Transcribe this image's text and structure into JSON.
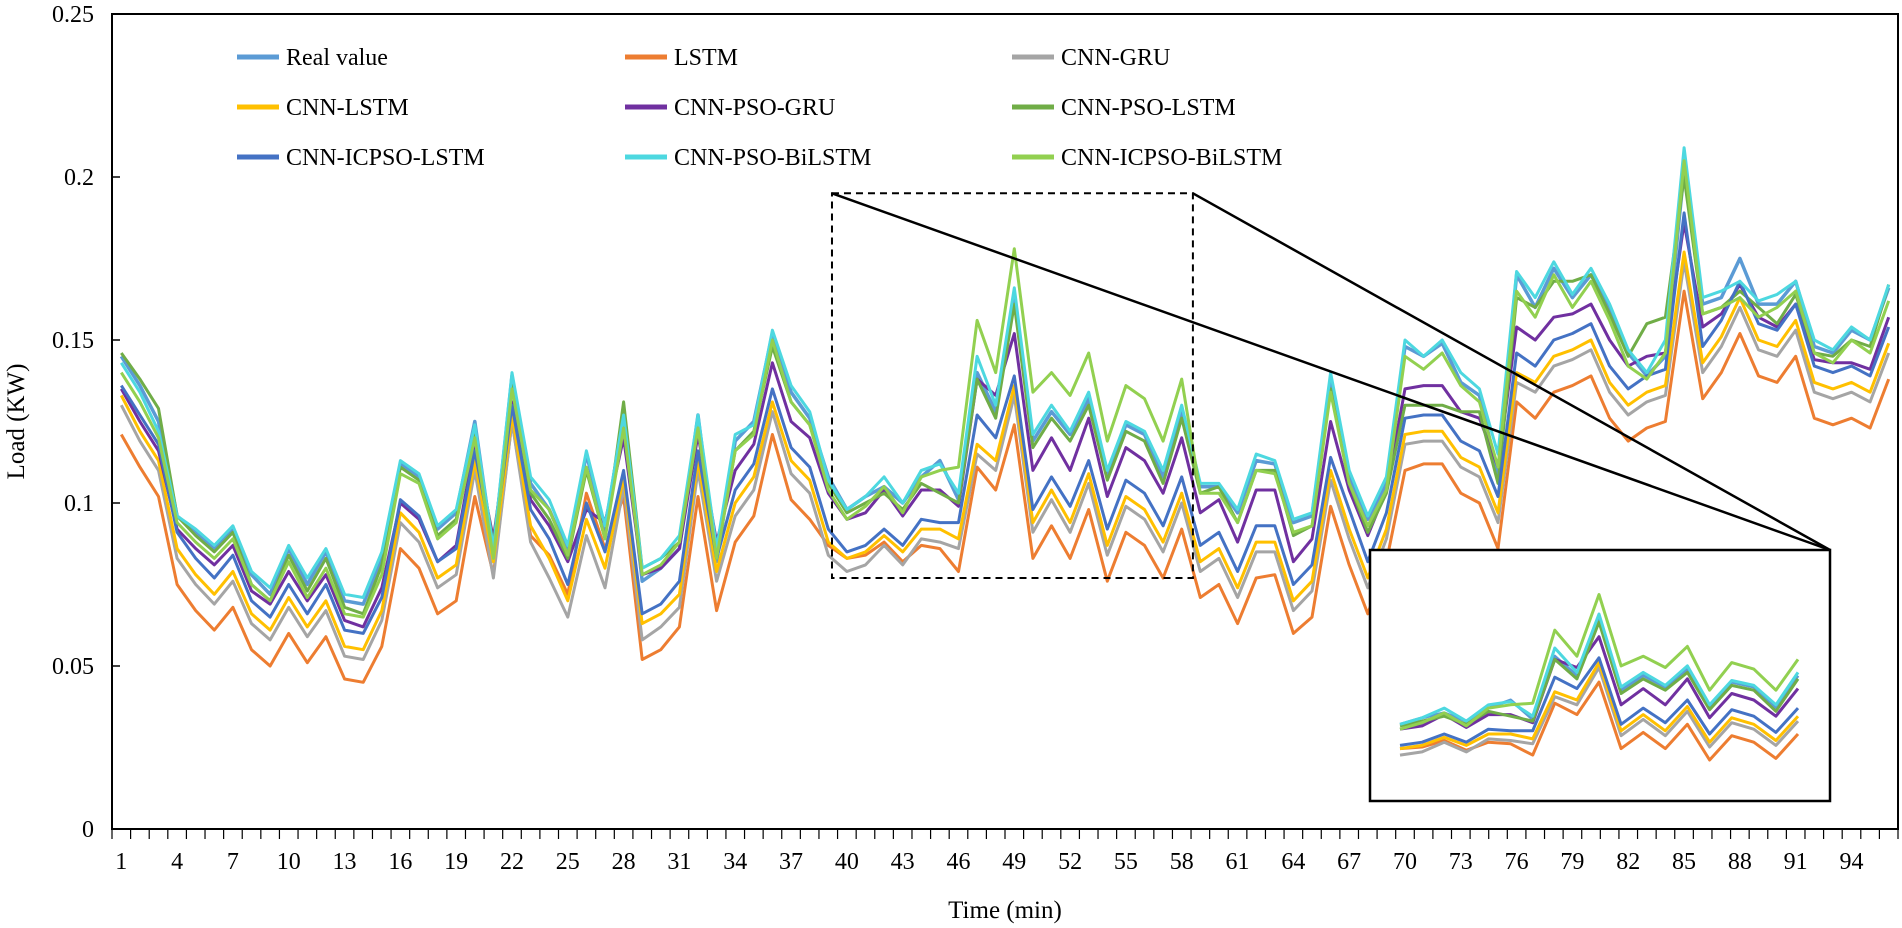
{
  "chart_data": {
    "type": "line",
    "title": "",
    "xlabel": "Time (min)",
    "ylabel": "Load (KW)",
    "ylim": [
      0,
      0.25
    ],
    "xlim": [
      1,
      96
    ],
    "grid": false,
    "legend_position": "top-left",
    "x_tick_labels": [
      "1",
      "4",
      "7",
      "10",
      "13",
      "16",
      "19",
      "22",
      "25",
      "28",
      "31",
      "34",
      "37",
      "40",
      "43",
      "46",
      "49",
      "52",
      "55",
      "58",
      "61",
      "64",
      "67",
      "70",
      "73",
      "76",
      "79",
      "82",
      "85",
      "88",
      "91",
      "94"
    ],
    "y_tick_labels": [
      "0",
      "0.05",
      "0.1",
      "0.15",
      "0.2",
      "0.25"
    ],
    "inset": {
      "x_range": [
        40,
        58
      ],
      "y_range": [
        0.077,
        0.195
      ],
      "note": "zoomed view of Time 40–58"
    },
    "series": [
      {
        "name": "Real value",
        "color": "#5B9BD5",
        "width": 3.5,
        "values": [
          0.145,
          0.136,
          0.125,
          0.096,
          0.091,
          0.086,
          0.092,
          0.078,
          0.072,
          0.086,
          0.075,
          0.085,
          0.07,
          0.069,
          0.083,
          0.112,
          0.108,
          0.092,
          0.097,
          0.125,
          0.085,
          0.139,
          0.106,
          0.098,
          0.085,
          0.115,
          0.092,
          0.127,
          0.076,
          0.08,
          0.086,
          0.127,
          0.082,
          0.119,
          0.125,
          0.152,
          0.134,
          0.126,
          0.108,
          0.098,
          0.102,
          0.105,
          0.1,
          0.108,
          0.113,
          0.101,
          0.14,
          0.128,
          0.164,
          0.119,
          0.128,
          0.121,
          0.132,
          0.109,
          0.124,
          0.121,
          0.108,
          0.128,
          0.105,
          0.105,
          0.097,
          0.113,
          0.112,
          0.094,
          0.096,
          0.138,
          0.108,
          0.095,
          0.106,
          0.148,
          0.145,
          0.149,
          0.137,
          0.133,
          0.109,
          0.17,
          0.16,
          0.172,
          0.163,
          0.17,
          0.16,
          0.146,
          0.139,
          0.145,
          0.202,
          0.161,
          0.163,
          0.175,
          0.161,
          0.161,
          0.168,
          0.148,
          0.146,
          0.153,
          0.15,
          0.166
        ]
      },
      {
        "name": "LSTM",
        "color": "#ED7D31",
        "width": 3,
        "values": [
          0.121,
          0.111,
          0.102,
          0.075,
          0.067,
          0.061,
          0.068,
          0.055,
          0.05,
          0.06,
          0.051,
          0.059,
          0.046,
          0.045,
          0.056,
          0.086,
          0.08,
          0.066,
          0.07,
          0.102,
          0.078,
          0.125,
          0.09,
          0.084,
          0.072,
          0.103,
          0.086,
          0.102,
          0.052,
          0.055,
          0.062,
          0.102,
          0.067,
          0.088,
          0.096,
          0.121,
          0.101,
          0.095,
          0.087,
          0.083,
          0.084,
          0.088,
          0.082,
          0.087,
          0.086,
          0.079,
          0.111,
          0.104,
          0.124,
          0.083,
          0.093,
          0.083,
          0.098,
          0.076,
          0.091,
          0.087,
          0.077,
          0.092,
          0.071,
          0.075,
          0.063,
          0.077,
          0.078,
          0.06,
          0.065,
          0.099,
          0.081,
          0.066,
          0.082,
          0.11,
          0.112,
          0.112,
          0.103,
          0.1,
          0.086,
          0.131,
          0.126,
          0.134,
          0.136,
          0.139,
          0.126,
          0.119,
          0.123,
          0.125,
          0.165,
          0.132,
          0.14,
          0.152,
          0.139,
          0.137,
          0.145,
          0.126,
          0.124,
          0.126,
          0.123,
          0.138
        ]
      },
      {
        "name": "CNN-GRU",
        "color": "#A5A5A5",
        "width": 3,
        "values": [
          0.13,
          0.119,
          0.11,
          0.083,
          0.075,
          0.069,
          0.076,
          0.063,
          0.058,
          0.068,
          0.059,
          0.067,
          0.053,
          0.052,
          0.064,
          0.094,
          0.088,
          0.074,
          0.078,
          0.11,
          0.077,
          0.125,
          0.088,
          0.077,
          0.065,
          0.09,
          0.074,
          0.105,
          0.058,
          0.062,
          0.068,
          0.11,
          0.076,
          0.096,
          0.104,
          0.128,
          0.109,
          0.103,
          0.084,
          0.079,
          0.081,
          0.087,
          0.081,
          0.089,
          0.088,
          0.086,
          0.115,
          0.11,
          0.133,
          0.091,
          0.101,
          0.091,
          0.106,
          0.084,
          0.099,
          0.095,
          0.085,
          0.1,
          0.079,
          0.083,
          0.071,
          0.085,
          0.085,
          0.067,
          0.073,
          0.107,
          0.089,
          0.074,
          0.089,
          0.118,
          0.119,
          0.119,
          0.111,
          0.108,
          0.094,
          0.137,
          0.134,
          0.142,
          0.144,
          0.147,
          0.134,
          0.127,
          0.131,
          0.133,
          0.174,
          0.14,
          0.148,
          0.16,
          0.147,
          0.145,
          0.153,
          0.134,
          0.132,
          0.134,
          0.131,
          0.146
        ]
      },
      {
        "name": "CNN-LSTM",
        "color": "#FFC000",
        "width": 3,
        "values": [
          0.133,
          0.122,
          0.113,
          0.086,
          0.078,
          0.072,
          0.079,
          0.066,
          0.061,
          0.071,
          0.062,
          0.07,
          0.056,
          0.055,
          0.067,
          0.097,
          0.091,
          0.077,
          0.081,
          0.113,
          0.082,
          0.127,
          0.093,
          0.083,
          0.07,
          0.095,
          0.08,
          0.108,
          0.063,
          0.066,
          0.072,
          0.113,
          0.079,
          0.1,
          0.108,
          0.131,
          0.113,
          0.107,
          0.088,
          0.083,
          0.085,
          0.09,
          0.085,
          0.092,
          0.092,
          0.089,
          0.118,
          0.113,
          0.136,
          0.094,
          0.104,
          0.094,
          0.109,
          0.087,
          0.102,
          0.098,
          0.088,
          0.103,
          0.082,
          0.086,
          0.074,
          0.088,
          0.088,
          0.07,
          0.076,
          0.11,
          0.092,
          0.077,
          0.092,
          0.121,
          0.122,
          0.122,
          0.114,
          0.111,
          0.097,
          0.14,
          0.137,
          0.145,
          0.147,
          0.15,
          0.137,
          0.13,
          0.134,
          0.136,
          0.177,
          0.143,
          0.151,
          0.163,
          0.15,
          0.148,
          0.156,
          0.137,
          0.135,
          0.137,
          0.134,
          0.149
        ]
      },
      {
        "name": "CNN-PSO-GRU",
        "color": "#7030A0",
        "width": 3,
        "values": [
          0.135,
          0.125,
          0.116,
          0.092,
          0.086,
          0.081,
          0.087,
          0.073,
          0.069,
          0.079,
          0.07,
          0.078,
          0.064,
          0.062,
          0.074,
          0.1,
          0.095,
          0.082,
          0.087,
          0.118,
          0.089,
          0.131,
          0.101,
          0.093,
          0.082,
          0.098,
          0.094,
          0.12,
          0.078,
          0.08,
          0.086,
          0.121,
          0.088,
          0.11,
          0.118,
          0.143,
          0.125,
          0.12,
          0.103,
          0.095,
          0.097,
          0.104,
          0.096,
          0.104,
          0.104,
          0.099,
          0.138,
          0.133,
          0.152,
          0.11,
          0.12,
          0.11,
          0.126,
          0.102,
          0.117,
          0.113,
          0.103,
          0.12,
          0.097,
          0.101,
          0.088,
          0.104,
          0.104,
          0.082,
          0.089,
          0.125,
          0.104,
          0.09,
          0.104,
          0.135,
          0.136,
          0.136,
          0.128,
          0.126,
          0.111,
          0.154,
          0.15,
          0.157,
          0.158,
          0.161,
          0.15,
          0.142,
          0.145,
          0.146,
          0.186,
          0.154,
          0.158,
          0.167,
          0.157,
          0.154,
          0.161,
          0.144,
          0.143,
          0.143,
          0.141,
          0.157
        ]
      },
      {
        "name": "CNN-PSO-LSTM",
        "color": "#70AD47",
        "width": 3,
        "values": [
          0.146,
          0.138,
          0.129,
          0.096,
          0.09,
          0.085,
          0.091,
          0.075,
          0.07,
          0.084,
          0.073,
          0.083,
          0.068,
          0.066,
          0.081,
          0.111,
          0.107,
          0.09,
          0.095,
          0.122,
          0.087,
          0.136,
          0.103,
          0.095,
          0.083,
          0.11,
          0.089,
          0.131,
          0.08,
          0.083,
          0.088,
          0.125,
          0.084,
          0.116,
          0.122,
          0.148,
          0.131,
          0.124,
          0.106,
          0.097,
          0.1,
          0.103,
          0.098,
          0.106,
          0.103,
          0.1,
          0.138,
          0.126,
          0.161,
          0.117,
          0.126,
          0.119,
          0.13,
          0.107,
          0.122,
          0.119,
          0.106,
          0.126,
          0.103,
          0.105,
          0.094,
          0.11,
          0.11,
          0.09,
          0.093,
          0.135,
          0.106,
          0.091,
          0.103,
          0.13,
          0.13,
          0.13,
          0.128,
          0.128,
          0.106,
          0.163,
          0.16,
          0.168,
          0.168,
          0.17,
          0.158,
          0.145,
          0.155,
          0.157,
          0.2,
          0.158,
          0.16,
          0.165,
          0.16,
          0.155,
          0.164,
          0.146,
          0.145,
          0.15,
          0.148,
          0.167
        ]
      },
      {
        "name": "CNN-ICPSO-LSTM",
        "color": "#4472C4",
        "width": 3,
        "values": [
          0.136,
          0.127,
          0.118,
          0.091,
          0.083,
          0.077,
          0.084,
          0.07,
          0.065,
          0.075,
          0.066,
          0.075,
          0.061,
          0.06,
          0.071,
          0.101,
          0.096,
          0.082,
          0.086,
          0.116,
          0.086,
          0.13,
          0.098,
          0.089,
          0.075,
          0.1,
          0.085,
          0.11,
          0.066,
          0.069,
          0.076,
          0.116,
          0.083,
          0.104,
          0.112,
          0.135,
          0.117,
          0.111,
          0.092,
          0.085,
          0.087,
          0.092,
          0.087,
          0.095,
          0.094,
          0.094,
          0.127,
          0.12,
          0.139,
          0.098,
          0.108,
          0.099,
          0.113,
          0.092,
          0.107,
          0.103,
          0.093,
          0.108,
          0.087,
          0.091,
          0.079,
          0.093,
          0.093,
          0.075,
          0.081,
          0.114,
          0.098,
          0.082,
          0.097,
          0.126,
          0.127,
          0.127,
          0.119,
          0.116,
          0.102,
          0.146,
          0.142,
          0.15,
          0.152,
          0.155,
          0.142,
          0.135,
          0.139,
          0.141,
          0.189,
          0.148,
          0.156,
          0.168,
          0.155,
          0.153,
          0.161,
          0.142,
          0.14,
          0.142,
          0.139,
          0.154
        ]
      },
      {
        "name": "CNN-PSO-BiLSTM",
        "color": "#4DD8E0",
        "width": 3,
        "values": [
          0.143,
          0.134,
          0.122,
          0.096,
          0.092,
          0.087,
          0.093,
          0.079,
          0.074,
          0.087,
          0.077,
          0.086,
          0.072,
          0.071,
          0.085,
          0.113,
          0.109,
          0.093,
          0.098,
          0.124,
          0.086,
          0.14,
          0.108,
          0.101,
          0.087,
          0.116,
          0.093,
          0.127,
          0.08,
          0.083,
          0.09,
          0.127,
          0.086,
          0.121,
          0.124,
          0.153,
          0.136,
          0.128,
          0.107,
          0.098,
          0.102,
          0.108,
          0.1,
          0.11,
          0.112,
          0.103,
          0.145,
          0.13,
          0.166,
          0.121,
          0.13,
          0.122,
          0.134,
          0.11,
          0.125,
          0.122,
          0.11,
          0.13,
          0.106,
          0.106,
          0.098,
          0.115,
          0.113,
          0.095,
          0.097,
          0.14,
          0.11,
          0.096,
          0.108,
          0.15,
          0.145,
          0.15,
          0.14,
          0.135,
          0.115,
          0.171,
          0.163,
          0.174,
          0.164,
          0.172,
          0.161,
          0.147,
          0.14,
          0.15,
          0.209,
          0.163,
          0.165,
          0.168,
          0.162,
          0.164,
          0.168,
          0.15,
          0.147,
          0.154,
          0.15,
          0.167
        ]
      },
      {
        "name": "CNN-ICPSO-BiLSTM",
        "color": "#92D050",
        "width": 3,
        "values": [
          0.14,
          0.131,
          0.12,
          0.094,
          0.088,
          0.083,
          0.089,
          0.075,
          0.07,
          0.082,
          0.071,
          0.08,
          0.066,
          0.065,
          0.078,
          0.109,
          0.106,
          0.089,
          0.094,
          0.12,
          0.083,
          0.135,
          0.104,
          0.098,
          0.084,
          0.111,
          0.089,
          0.123,
          0.078,
          0.081,
          0.088,
          0.123,
          0.083,
          0.116,
          0.121,
          0.15,
          0.131,
          0.124,
          0.104,
          0.095,
          0.099,
          0.105,
          0.097,
          0.108,
          0.11,
          0.111,
          0.156,
          0.14,
          0.178,
          0.134,
          0.14,
          0.133,
          0.146,
          0.119,
          0.136,
          0.132,
          0.119,
          0.138,
          0.103,
          0.103,
          0.094,
          0.11,
          0.109,
          0.091,
          0.093,
          0.134,
          0.106,
          0.093,
          0.104,
          0.145,
          0.141,
          0.146,
          0.136,
          0.131,
          0.111,
          0.165,
          0.157,
          0.17,
          0.16,
          0.168,
          0.156,
          0.142,
          0.138,
          0.146,
          0.205,
          0.158,
          0.16,
          0.163,
          0.157,
          0.16,
          0.165,
          0.146,
          0.143,
          0.15,
          0.146,
          0.162
        ]
      }
    ]
  }
}
